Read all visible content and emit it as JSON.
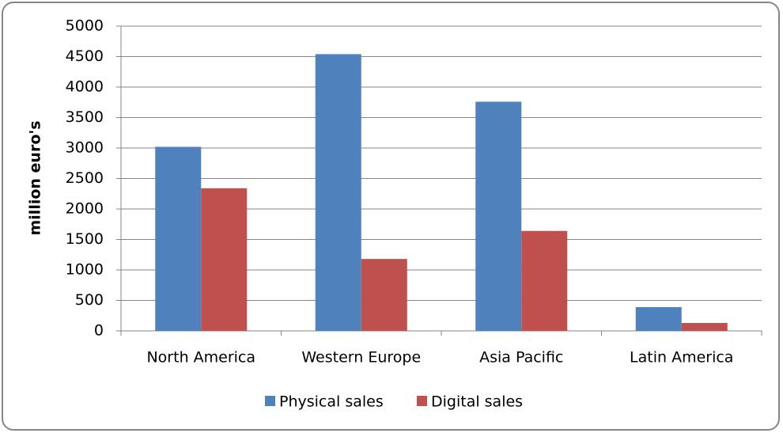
{
  "chart_data": {
    "type": "bar",
    "y_label": "million euro's",
    "categories": [
      "North America",
      "Western Europe",
      "Asia Pacific",
      "Latin America"
    ],
    "series": [
      {
        "name": "Physical sales",
        "color": "#4f81bd",
        "values": [
          3020,
          4540,
          3760,
          390
        ]
      },
      {
        "name": "Digital sales",
        "color": "#c0504d",
        "values": [
          2340,
          1180,
          1640,
          130
        ]
      }
    ],
    "ylim": [
      0,
      5000
    ],
    "yticks": [
      0,
      500,
      1000,
      1500,
      2000,
      2500,
      3000,
      3500,
      4000,
      4500,
      5000
    ],
    "grid": true,
    "legend": "bottom"
  }
}
